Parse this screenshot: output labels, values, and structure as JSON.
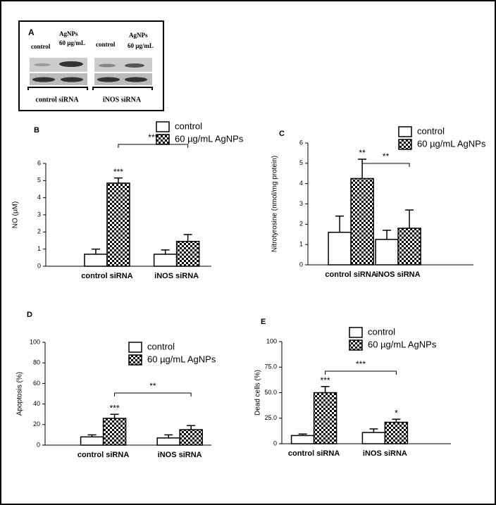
{
  "blot": {
    "panel": "A",
    "lane_labels": [
      [
        "control"
      ],
      [
        "AgNPs",
        "60 µg/mL"
      ],
      [
        "control"
      ],
      [
        "AgNPs",
        "60 µg/mL"
      ]
    ],
    "group_labels": [
      "control siRNA",
      "iNOS siRNA"
    ]
  },
  "chart_data": [
    {
      "type": "bar",
      "panel": "B",
      "y_label": "NO (µM)",
      "categories": [
        "control siRNA",
        "iNOS siRNA"
      ],
      "series": [
        {
          "name": "control",
          "color": "#ffffff",
          "values": [
            0.7,
            0.7
          ],
          "errors": [
            0.3,
            0.25
          ],
          "annotations": [
            null,
            null
          ]
        },
        {
          "name": "60 µg/mL AgNPs",
          "color": "#000000",
          "pattern": "checkerboard",
          "values": [
            4.85,
            1.45
          ],
          "errors": [
            0.3,
            0.4
          ],
          "annotations": [
            "***",
            null
          ]
        }
      ],
      "comparison_label": "***",
      "ylim": [
        0,
        6
      ],
      "yticks": [
        0,
        1,
        2,
        3,
        4,
        5,
        6
      ]
    },
    {
      "type": "bar",
      "panel": "C",
      "y_label": "Nitrotyrosine (nmol/mg protein)",
      "categories": [
        "control siRNA",
        "iNOS siRNA"
      ],
      "series": [
        {
          "name": "control",
          "color": "#ffffff",
          "values": [
            1.6,
            1.25
          ],
          "errors": [
            0.8,
            0.45
          ],
          "annotations": [
            null,
            null
          ]
        },
        {
          "name": "60 µg/mL AgNPs",
          "color": "#000000",
          "pattern": "checkerboard",
          "values": [
            4.25,
            1.8
          ],
          "errors": [
            0.95,
            0.9
          ],
          "annotations": [
            "**",
            null
          ]
        }
      ],
      "comparison_label": "**",
      "ylim": [
        0,
        6
      ],
      "yticks": [
        0,
        1,
        2,
        3,
        4,
        5,
        6
      ]
    },
    {
      "type": "bar",
      "panel": "D",
      "y_label": "Apoptosis (%)",
      "categories": [
        "control siRNA",
        "iNOS siRNA"
      ],
      "series": [
        {
          "name": "control",
          "color": "#ffffff",
          "values": [
            8,
            7
          ],
          "errors": [
            2,
            3
          ],
          "annotations": [
            null,
            null
          ]
        },
        {
          "name": "60 µg/mL AgNPs",
          "color": "#000000",
          "pattern": "checkerboard",
          "values": [
            26,
            15
          ],
          "errors": [
            4,
            4
          ],
          "annotations": [
            "***",
            null
          ]
        }
      ],
      "comparison_label": "**",
      "ylim": [
        0,
        100
      ],
      "yticks": [
        0,
        20,
        40,
        60,
        80,
        100
      ]
    },
    {
      "type": "bar",
      "panel": "E",
      "y_label": "Dead cells (%)",
      "categories": [
        "control siRNA",
        "iNOS siRNA"
      ],
      "series": [
        {
          "name": "control",
          "color": "#ffffff",
          "values": [
            8,
            11
          ],
          "errors": [
            1.5,
            3.5
          ],
          "annotations": [
            null,
            null
          ]
        },
        {
          "name": "60 µg/mL AgNPs",
          "color": "#000000",
          "pattern": "checkerboard",
          "values": [
            50,
            21
          ],
          "errors": [
            6,
            3
          ],
          "annotations": [
            "***",
            "*"
          ]
        }
      ],
      "comparison_label": "***",
      "ylim": [
        0,
        100
      ],
      "yticks": [
        0,
        {
          "value": 25,
          "label": "25.0"
        },
        {
          "value": 50,
          "label": "50.0"
        },
        {
          "value": 75,
          "label": "75.0"
        },
        100
      ]
    }
  ]
}
